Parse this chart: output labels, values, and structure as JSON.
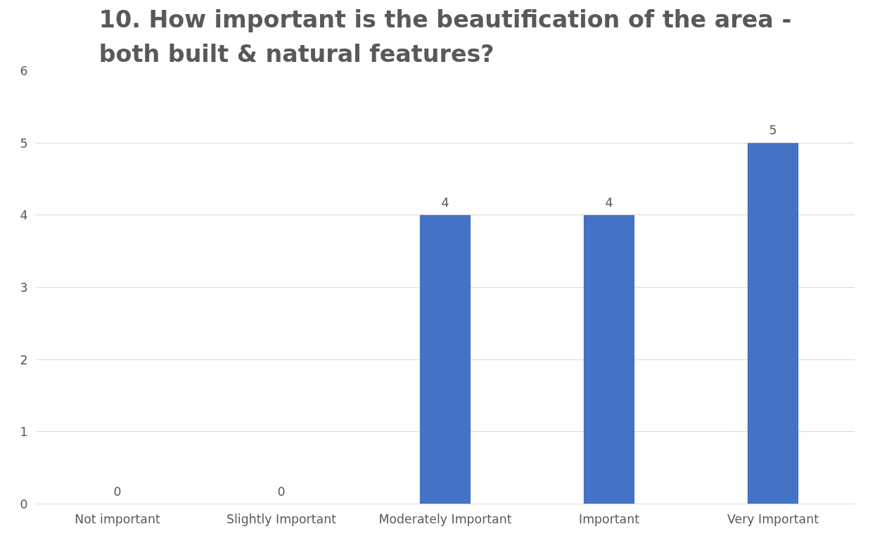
{
  "chart_data": {
    "type": "bar",
    "title": "10. How important is the beautification of the area - both built & natural features?",
    "categories": [
      "Not important",
      "Slightly Important",
      "Moderately Important",
      "Important",
      "Very Important"
    ],
    "values": [
      0,
      0,
      4,
      4,
      5
    ],
    "color": "#4472c4",
    "ylim": [
      0,
      6
    ],
    "yticks": [
      0,
      1,
      2,
      3,
      4,
      5,
      6
    ],
    "grid": "y",
    "data_labels": true
  }
}
